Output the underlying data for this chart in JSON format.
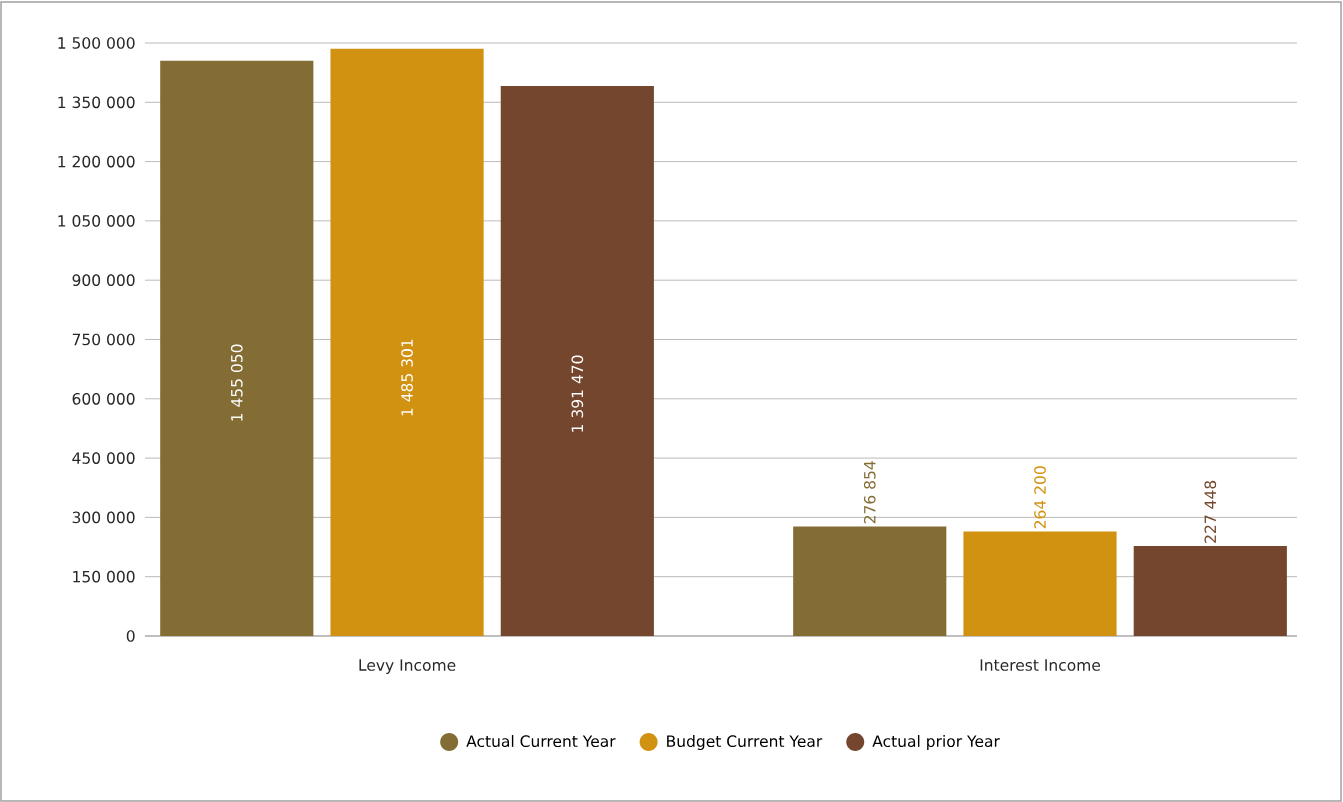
{
  "chart_data": {
    "type": "bar",
    "categories": [
      "Levy Income",
      "Interest Income"
    ],
    "series": [
      {
        "name": "Actual Current Year",
        "color": "#846c35",
        "values": [
          1455050,
          276854
        ],
        "value_labels": [
          "1 455 050",
          "276 854"
        ]
      },
      {
        "name": "Budget Current Year",
        "color": "#d29211",
        "values": [
          1485301,
          264200
        ],
        "value_labels": [
          "1 485 301",
          "264 200"
        ]
      },
      {
        "name": "Actual prior Year",
        "color": "#74462e",
        "values": [
          1391470,
          227448
        ],
        "value_labels": [
          "1 391 470",
          "227 448"
        ]
      }
    ],
    "ylim": [
      0,
      1500000
    ],
    "yticks": [
      {
        "value": 0,
        "label": "0"
      },
      {
        "value": 150000,
        "label": "150 000"
      },
      {
        "value": 300000,
        "label": "300 000"
      },
      {
        "value": 450000,
        "label": "450 000"
      },
      {
        "value": 600000,
        "label": "600 000"
      },
      {
        "value": 750000,
        "label": "750 000"
      },
      {
        "value": 900000,
        "label": "900 000"
      },
      {
        "value": 1050000,
        "label": "1 050 000"
      },
      {
        "value": 1200000,
        "label": "1 200 000"
      },
      {
        "value": 1350000,
        "label": "1 350 000"
      },
      {
        "value": 1500000,
        "label": "1 500 000"
      }
    ],
    "grid": "y",
    "legend": "bottom"
  }
}
